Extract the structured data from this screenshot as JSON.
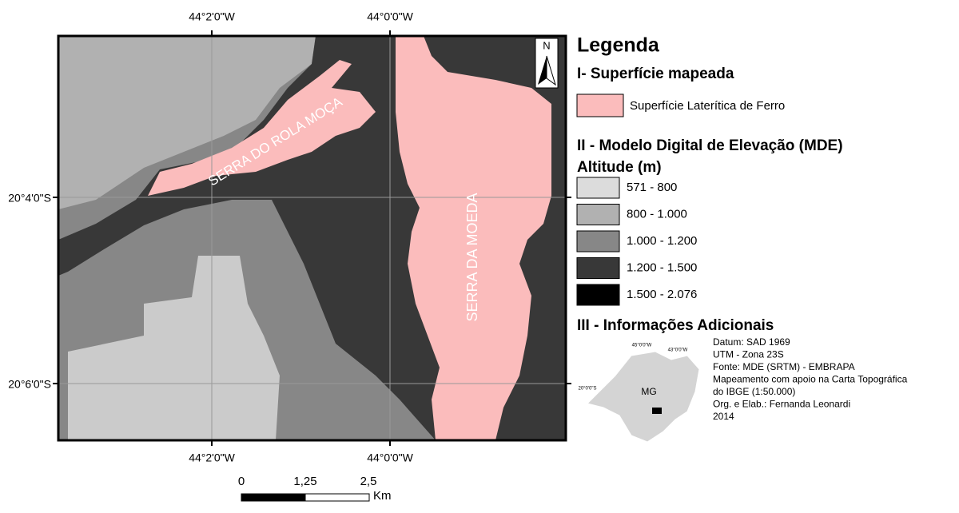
{
  "map": {
    "top_labels": [
      "44°2'0\"W",
      "44°0'0\"W"
    ],
    "bottom_labels": [
      "44°2'0\"W",
      "44°0'0\"W"
    ],
    "left_labels": [
      "20°4'0\"S",
      "20°6'0\"S"
    ],
    "places": [
      "SERRA DO ROLA MOÇA",
      "SERRA DA MOEDA"
    ],
    "north": "N"
  },
  "legend": {
    "title": "Legenda",
    "section1": "I-  Superfície mapeada",
    "surface": "Superfície Laterítica de Ferro",
    "section2": "II - Modelo Digital de Elevação (MDE)",
    "altitude": "Altitude (m)",
    "classes": [
      "571 - 800",
      "800 - 1.000",
      "1.000 - 1.200",
      "1.200 - 1.500",
      "1.500 - 2.076"
    ],
    "section3": "III - Informações Adicionais",
    "info": [
      "Datum: SAD 1969",
      "UTM - Zona 23S",
      "Fonte: MDE (SRTM) - EMBRAPA",
      "Mapeamento com apoio na Carta Topográfica",
      "do IBGE (1:50.000)",
      "Org. e Elab.: Fernanda Leonardi",
      "2014"
    ]
  },
  "inset": {
    "label": "MG",
    "coords": [
      "45°0'0\"W",
      "43°0'0\"W",
      "20°0'0\"S"
    ]
  },
  "scale": {
    "labels": [
      "0",
      "1,25",
      "2,5"
    ],
    "unit": "Km"
  }
}
